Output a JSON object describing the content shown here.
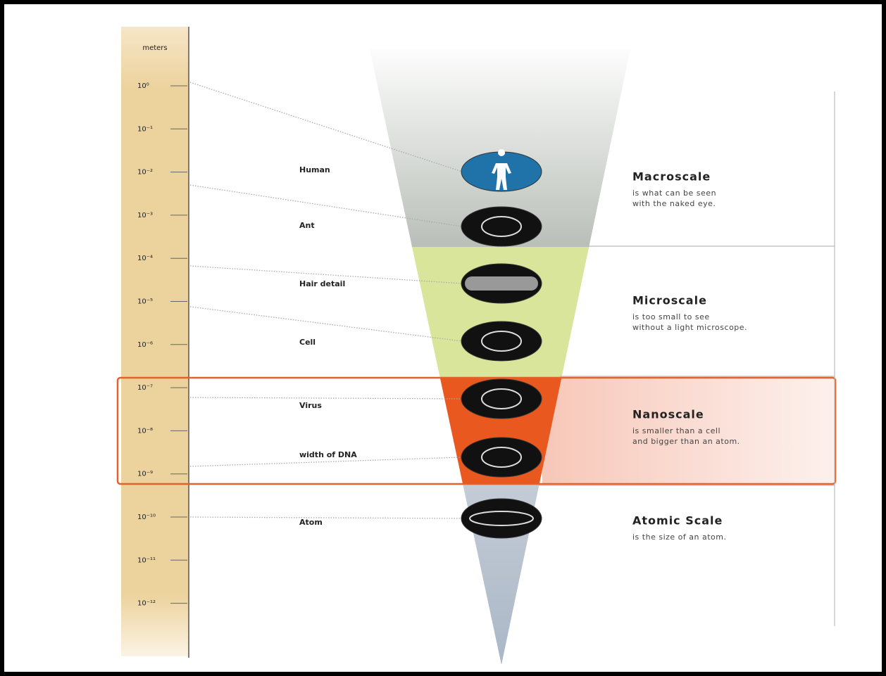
{
  "axis": {
    "label": "meters",
    "ticks": [
      "10⁰",
      "10⁻¹",
      "10⁻²",
      "10⁻³",
      "10⁻⁴",
      "10⁻⁵",
      "10⁻⁶",
      "10⁻⁷",
      "10⁻⁸",
      "10⁻⁹",
      "10⁻¹⁰",
      "10⁻¹¹",
      "10⁻¹²"
    ]
  },
  "items": [
    {
      "label": "Human"
    },
    {
      "label": "Ant"
    },
    {
      "label": "Hair detail"
    },
    {
      "label": "Cell"
    },
    {
      "label": "Virus"
    },
    {
      "label": "width of DNA"
    },
    {
      "label": "Atom"
    }
  ],
  "scales": [
    {
      "name": "Macroscale",
      "description": [
        "is what can be seen",
        "with the naked eye."
      ]
    },
    {
      "name": "Microscale",
      "description": [
        "is too small to see",
        "without a light microscope."
      ]
    },
    {
      "name": "Nanoscale",
      "description": [
        "is smaller than a cell",
        "and bigger than an atom."
      ]
    },
    {
      "name": "Atomic Scale",
      "description": [
        "is the size of an atom."
      ]
    }
  ]
}
